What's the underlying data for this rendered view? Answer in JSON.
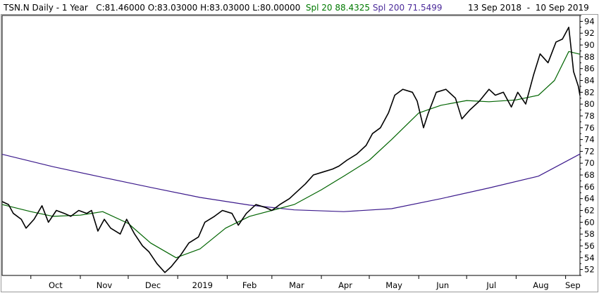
{
  "header": {
    "symbol": "TSN.N",
    "period": "Daily",
    "range": "1 Year",
    "close": "C:81.46000",
    "open": "O:83.03000",
    "high": "H:83.03000",
    "low": "L:80.00000",
    "spl20": "Spl 20 88.4325",
    "spl200": "Spl 200 71.5499",
    "date_from": "13 Sep 2018",
    "date_sep": "-",
    "date_to": "10 Sep 2019"
  },
  "colors": {
    "price": "#000000",
    "spl20": "#006400",
    "spl200": "#3c1a8c",
    "spl20_text": "#007a00",
    "spl200_text": "#4b2a9a",
    "frame": "#9a9a9a"
  },
  "chart_data": {
    "type": "line",
    "title": "TSN.N Daily - 1 Year",
    "x_labels": [
      "Oct",
      "Nov",
      "Dec",
      "2019",
      "Feb",
      "Mar",
      "Apr",
      "May",
      "Jun",
      "Jul",
      "Aug",
      "Sep"
    ],
    "y_ticks": [
      "94",
      "92",
      "90",
      "88",
      "86",
      "84",
      "82",
      "80",
      "78",
      "76",
      "74",
      "72",
      "70",
      "68",
      "66",
      "64",
      "62",
      "60",
      "58",
      "56",
      "54",
      "52"
    ],
    "ylim": [
      51,
      95
    ],
    "x_range": [
      "2018-09-13",
      "2019-09-10"
    ],
    "y_axis_position": "right",
    "grid": false,
    "series": [
      {
        "name": "",
        "key": "price",
        "points": [
          [
            "2018-09-13",
            63.5
          ],
          [
            "2018-09-17",
            63.0
          ],
          [
            "2018-09-20",
            61.5
          ],
          [
            "2018-09-25",
            60.5
          ],
          [
            "2018-09-28",
            59.0
          ],
          [
            "2018-10-03",
            60.5
          ],
          [
            "2018-10-08",
            62.8
          ],
          [
            "2018-10-12",
            60.0
          ],
          [
            "2018-10-17",
            62.0
          ],
          [
            "2018-10-22",
            61.5
          ],
          [
            "2018-10-26",
            61.0
          ],
          [
            "2018-10-31",
            62.0
          ],
          [
            "2018-11-05",
            61.5
          ],
          [
            "2018-11-08",
            62.0
          ],
          [
            "2018-11-12",
            58.5
          ],
          [
            "2018-11-16",
            60.5
          ],
          [
            "2018-11-20",
            59.0
          ],
          [
            "2018-11-26",
            58.0
          ],
          [
            "2018-11-30",
            60.5
          ],
          [
            "2018-12-05",
            58.0
          ],
          [
            "2018-12-10",
            56.0
          ],
          [
            "2018-12-14",
            55.0
          ],
          [
            "2018-12-19",
            53.0
          ],
          [
            "2018-12-24",
            51.5
          ],
          [
            "2018-12-28",
            52.5
          ],
          [
            "2019-01-03",
            54.5
          ],
          [
            "2019-01-08",
            56.5
          ],
          [
            "2019-01-14",
            57.5
          ],
          [
            "2019-01-18",
            60.0
          ],
          [
            "2019-01-24",
            61.0
          ],
          [
            "2019-01-29",
            62.0
          ],
          [
            "2019-02-04",
            61.5
          ],
          [
            "2019-02-08",
            59.5
          ],
          [
            "2019-02-13",
            61.5
          ],
          [
            "2019-02-19",
            63.0
          ],
          [
            "2019-02-25",
            62.5
          ],
          [
            "2019-03-01",
            62.0
          ],
          [
            "2019-03-06",
            63.0
          ],
          [
            "2019-03-12",
            64.0
          ],
          [
            "2019-03-18",
            65.5
          ],
          [
            "2019-03-22",
            66.5
          ],
          [
            "2019-03-27",
            68.0
          ],
          [
            "2019-04-02",
            68.5
          ],
          [
            "2019-04-08",
            69.0
          ],
          [
            "2019-04-12",
            69.5
          ],
          [
            "2019-04-17",
            70.5
          ],
          [
            "2019-04-23",
            71.5
          ],
          [
            "2019-04-29",
            73.0
          ],
          [
            "2019-05-03",
            75.0
          ],
          [
            "2019-05-08",
            76.0
          ],
          [
            "2019-05-13",
            78.5
          ],
          [
            "2019-05-17",
            81.5
          ],
          [
            "2019-05-22",
            82.5
          ],
          [
            "2019-05-28",
            82.0
          ],
          [
            "2019-05-31",
            80.5
          ],
          [
            "2019-06-04",
            76.0
          ],
          [
            "2019-06-07",
            78.5
          ],
          [
            "2019-06-12",
            82.0
          ],
          [
            "2019-06-18",
            82.5
          ],
          [
            "2019-06-24",
            81.0
          ],
          [
            "2019-06-28",
            77.5
          ],
          [
            "2019-07-03",
            79.0
          ],
          [
            "2019-07-09",
            80.5
          ],
          [
            "2019-07-15",
            82.5
          ],
          [
            "2019-07-19",
            81.5
          ],
          [
            "2019-07-24",
            82.0
          ],
          [
            "2019-07-29",
            79.5
          ],
          [
            "2019-08-02",
            82.0
          ],
          [
            "2019-08-07",
            80.0
          ],
          [
            "2019-08-12",
            85.0
          ],
          [
            "2019-08-16",
            88.5
          ],
          [
            "2019-08-21",
            87.0
          ],
          [
            "2019-08-26",
            90.5
          ],
          [
            "2019-08-30",
            91.0
          ],
          [
            "2019-09-03",
            93.0
          ],
          [
            "2019-09-05",
            88.0
          ],
          [
            "2019-09-06",
            85.5
          ],
          [
            "2019-09-09",
            83.0
          ],
          [
            "2019-09-10",
            81.46
          ]
        ]
      },
      {
        "name": "Spl 20",
        "key": "spl20",
        "points": [
          [
            "2018-09-13",
            63.0
          ],
          [
            "2018-10-01",
            61.8
          ],
          [
            "2018-10-15",
            61.0
          ],
          [
            "2018-11-01",
            61.2
          ],
          [
            "2018-11-15",
            61.8
          ],
          [
            "2018-12-01",
            59.8
          ],
          [
            "2018-12-15",
            56.5
          ],
          [
            "2018-12-31",
            54.0
          ],
          [
            "2019-01-15",
            55.5
          ],
          [
            "2019-01-31",
            59.0
          ],
          [
            "2019-02-15",
            61.0
          ],
          [
            "2019-03-01",
            62.0
          ],
          [
            "2019-03-15",
            63.0
          ],
          [
            "2019-04-01",
            65.5
          ],
          [
            "2019-04-15",
            67.8
          ],
          [
            "2019-05-01",
            70.5
          ],
          [
            "2019-05-15",
            74.0
          ],
          [
            "2019-06-01",
            78.5
          ],
          [
            "2019-06-15",
            79.8
          ],
          [
            "2019-07-01",
            80.6
          ],
          [
            "2019-07-15",
            80.4
          ],
          [
            "2019-08-01",
            80.7
          ],
          [
            "2019-08-15",
            81.5
          ],
          [
            "2019-08-25",
            84.0
          ],
          [
            "2019-09-03",
            88.9
          ],
          [
            "2019-09-10",
            88.43
          ]
        ]
      },
      {
        "name": "Spl 200",
        "key": "spl200",
        "points": [
          [
            "2018-09-13",
            71.5
          ],
          [
            "2018-10-15",
            69.4
          ],
          [
            "2018-11-15",
            67.6
          ],
          [
            "2018-12-15",
            65.9
          ],
          [
            "2019-01-15",
            64.2
          ],
          [
            "2019-02-15",
            62.9
          ],
          [
            "2019-03-15",
            62.1
          ],
          [
            "2019-04-15",
            61.8
          ],
          [
            "2019-05-15",
            62.3
          ],
          [
            "2019-06-15",
            64.0
          ],
          [
            "2019-07-15",
            65.8
          ],
          [
            "2019-08-15",
            67.8
          ],
          [
            "2019-09-10",
            71.55
          ]
        ]
      }
    ]
  }
}
